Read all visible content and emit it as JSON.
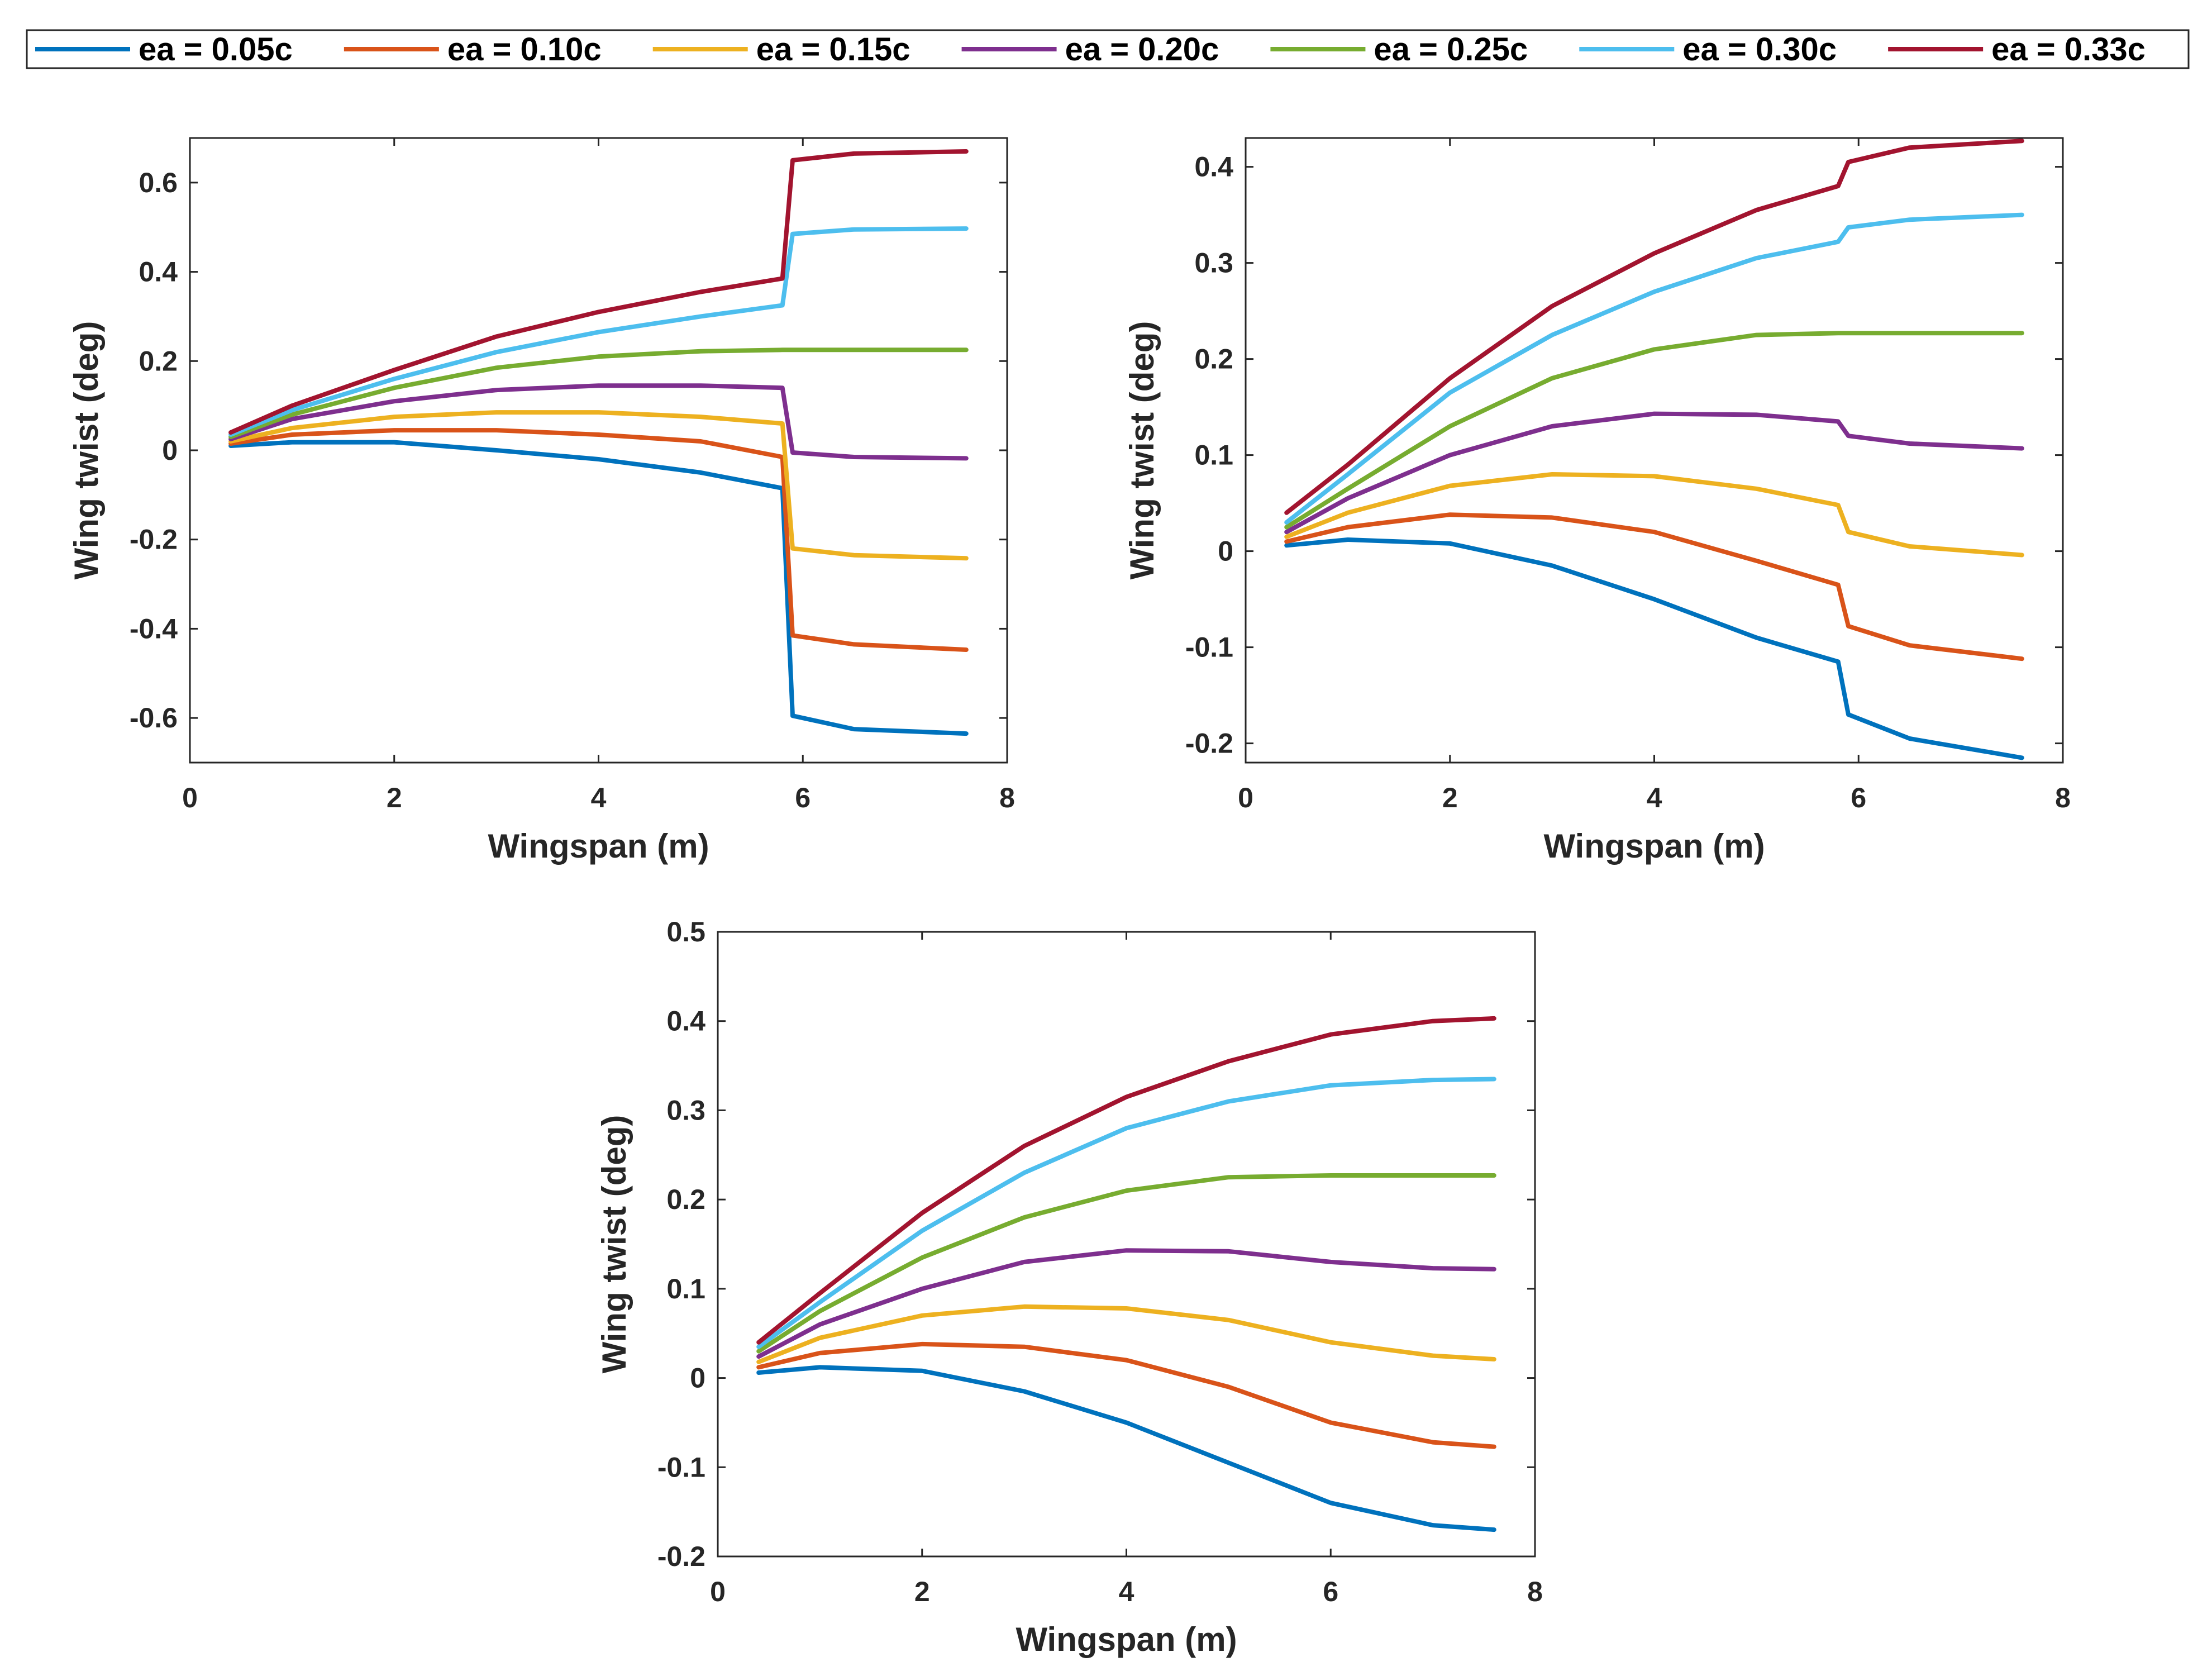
{
  "chart_data": [
    {
      "type": "line",
      "title": "",
      "xlabel": "Wingspan (m)",
      "ylabel": "Wing twist (deg)",
      "xlim": [
        0,
        8
      ],
      "ylim": [
        -0.7,
        0.7
      ],
      "xticks": [
        0,
        2,
        4,
        6,
        8
      ],
      "yticks": [
        -0.6,
        -0.4,
        -0.2,
        0,
        0.2,
        0.4,
        0.6
      ],
      "ytick_labels": [
        "-0.6",
        "-0.4",
        "-0.2",
        "0",
        "0.2",
        "0.4",
        "0.6"
      ],
      "grid": false,
      "series": [
        {
          "name": "ea = 0.05c",
          "x": [
            0.4,
            1,
            2,
            3,
            4,
            5,
            5.8,
            5.9,
            6.5,
            7.6
          ],
          "values": [
            0.01,
            0.018,
            0.018,
            0.0,
            -0.02,
            -0.05,
            -0.085,
            -0.595,
            -0.625,
            -0.635
          ]
        },
        {
          "name": "ea = 0.10c",
          "x": [
            0.4,
            1,
            2,
            3,
            4,
            5,
            5.8,
            5.9,
            6.5,
            7.6
          ],
          "values": [
            0.015,
            0.035,
            0.045,
            0.045,
            0.035,
            0.02,
            -0.015,
            -0.415,
            -0.435,
            -0.447
          ]
        },
        {
          "name": "ea = 0.15c",
          "x": [
            0.4,
            1,
            2,
            3,
            4,
            5,
            5.8,
            5.9,
            6.5,
            7.6
          ],
          "values": [
            0.02,
            0.05,
            0.075,
            0.085,
            0.085,
            0.075,
            0.06,
            -0.22,
            -0.235,
            -0.242
          ]
        },
        {
          "name": "ea = 0.20c",
          "x": [
            0.4,
            1,
            2,
            3,
            4,
            5,
            5.8,
            5.9,
            6.5,
            7.6
          ],
          "values": [
            0.025,
            0.07,
            0.11,
            0.135,
            0.145,
            0.145,
            0.14,
            -0.005,
            -0.015,
            -0.018
          ]
        },
        {
          "name": "ea = 0.25c",
          "x": [
            0.4,
            1,
            2,
            3,
            4,
            5,
            5.8,
            5.9,
            6.5,
            7.6
          ],
          "values": [
            0.03,
            0.08,
            0.14,
            0.185,
            0.21,
            0.222,
            0.225,
            0.225,
            0.225,
            0.225
          ]
        },
        {
          "name": "ea = 0.30c",
          "x": [
            0.4,
            1,
            2,
            3,
            4,
            5,
            5.8,
            5.9,
            6.5,
            7.6
          ],
          "values": [
            0.035,
            0.09,
            0.16,
            0.22,
            0.265,
            0.3,
            0.325,
            0.485,
            0.495,
            0.497
          ]
        },
        {
          "name": "ea = 0.33c",
          "x": [
            0.4,
            1,
            2,
            3,
            4,
            5,
            5.8,
            5.9,
            6.5,
            7.6
          ],
          "values": [
            0.04,
            0.1,
            0.18,
            0.255,
            0.31,
            0.355,
            0.385,
            0.65,
            0.665,
            0.67
          ]
        }
      ]
    },
    {
      "type": "line",
      "title": "",
      "xlabel": "Wingspan (m)",
      "ylabel": "Wing twist (deg)",
      "xlim": [
        0,
        8
      ],
      "ylim": [
        -0.22,
        0.43
      ],
      "xticks": [
        0,
        2,
        4,
        6,
        8
      ],
      "yticks": [
        -0.2,
        -0.1,
        0,
        0.1,
        0.2,
        0.3,
        0.4
      ],
      "ytick_labels": [
        "-0.2",
        "-0.1",
        "0",
        "0.1",
        "0.2",
        "0.3",
        "0.4"
      ],
      "grid": false,
      "series": [
        {
          "name": "ea = 0.05c",
          "x": [
            0.4,
            1,
            2,
            3,
            4,
            5,
            5.8,
            5.9,
            6.5,
            7.6
          ],
          "values": [
            0.006,
            0.012,
            0.008,
            -0.015,
            -0.05,
            -0.09,
            -0.115,
            -0.17,
            -0.195,
            -0.215
          ]
        },
        {
          "name": "ea = 0.10c",
          "x": [
            0.4,
            1,
            2,
            3,
            4,
            5,
            5.8,
            5.9,
            6.5,
            7.6
          ],
          "values": [
            0.01,
            0.025,
            0.038,
            0.035,
            0.02,
            -0.01,
            -0.035,
            -0.078,
            -0.098,
            -0.112
          ]
        },
        {
          "name": "ea = 0.15c",
          "x": [
            0.4,
            1,
            2,
            3,
            4,
            5,
            5.8,
            5.9,
            6.5,
            7.6
          ],
          "values": [
            0.015,
            0.04,
            0.068,
            0.08,
            0.078,
            0.065,
            0.048,
            0.02,
            0.005,
            -0.004
          ]
        },
        {
          "name": "ea = 0.20c",
          "x": [
            0.4,
            1,
            2,
            3,
            4,
            5,
            5.8,
            5.9,
            6.5,
            7.6
          ],
          "values": [
            0.02,
            0.055,
            0.1,
            0.13,
            0.143,
            0.142,
            0.135,
            0.12,
            0.112,
            0.107
          ]
        },
        {
          "name": "ea = 0.25c",
          "x": [
            0.4,
            1,
            2,
            3,
            4,
            5,
            5.8,
            5.9,
            6.5,
            7.6
          ],
          "values": [
            0.025,
            0.065,
            0.13,
            0.18,
            0.21,
            0.225,
            0.227,
            0.227,
            0.227,
            0.227
          ]
        },
        {
          "name": "ea = 0.30c",
          "x": [
            0.4,
            1,
            2,
            3,
            4,
            5,
            5.8,
            5.9,
            6.5,
            7.6
          ],
          "values": [
            0.03,
            0.08,
            0.165,
            0.225,
            0.27,
            0.305,
            0.322,
            0.337,
            0.345,
            0.35
          ]
        },
        {
          "name": "ea = 0.33c",
          "x": [
            0.4,
            1,
            2,
            3,
            4,
            5,
            5.8,
            5.9,
            6.5,
            7.6
          ],
          "values": [
            0.04,
            0.09,
            0.18,
            0.255,
            0.31,
            0.355,
            0.38,
            0.405,
            0.42,
            0.427
          ]
        }
      ]
    },
    {
      "type": "line",
      "title": "",
      "xlabel": "Wingspan (m)",
      "ylabel": "Wing twist (deg)",
      "xlim": [
        0,
        8
      ],
      "ylim": [
        -0.2,
        0.5
      ],
      "xticks": [
        0,
        2,
        4,
        6,
        8
      ],
      "yticks": [
        -0.2,
        -0.1,
        0,
        0.1,
        0.2,
        0.3,
        0.4,
        0.5
      ],
      "ytick_labels": [
        "-0.2",
        "-0.1",
        "0",
        "0.1",
        "0.2",
        "0.3",
        "0.4",
        "0.5"
      ],
      "grid": false,
      "series": [
        {
          "name": "ea = 0.05c",
          "x": [
            0.4,
            1,
            2,
            3,
            4,
            5,
            6,
            7,
            7.6
          ],
          "values": [
            0.006,
            0.012,
            0.008,
            -0.015,
            -0.05,
            -0.095,
            -0.14,
            -0.165,
            -0.17
          ]
        },
        {
          "name": "ea = 0.10c",
          "x": [
            0.4,
            1,
            2,
            3,
            4,
            5,
            6,
            7,
            7.6
          ],
          "values": [
            0.012,
            0.028,
            0.038,
            0.035,
            0.02,
            -0.01,
            -0.05,
            -0.072,
            -0.077
          ]
        },
        {
          "name": "ea = 0.15c",
          "x": [
            0.4,
            1,
            2,
            3,
            4,
            5,
            6,
            7,
            7.6
          ],
          "values": [
            0.018,
            0.045,
            0.07,
            0.08,
            0.078,
            0.065,
            0.04,
            0.025,
            0.021
          ]
        },
        {
          "name": "ea = 0.20c",
          "x": [
            0.4,
            1,
            2,
            3,
            4,
            5,
            6,
            7,
            7.6
          ],
          "values": [
            0.024,
            0.06,
            0.1,
            0.13,
            0.143,
            0.142,
            0.13,
            0.123,
            0.122
          ]
        },
        {
          "name": "ea = 0.25c",
          "x": [
            0.4,
            1,
            2,
            3,
            4,
            5,
            6,
            7,
            7.6
          ],
          "values": [
            0.03,
            0.075,
            0.135,
            0.18,
            0.21,
            0.225,
            0.227,
            0.227,
            0.227
          ]
        },
        {
          "name": "ea = 0.30c",
          "x": [
            0.4,
            1,
            2,
            3,
            4,
            5,
            6,
            7,
            7.6
          ],
          "values": [
            0.035,
            0.085,
            0.165,
            0.23,
            0.28,
            0.31,
            0.328,
            0.334,
            0.335
          ]
        },
        {
          "name": "ea = 0.33c",
          "x": [
            0.4,
            1,
            2,
            3,
            4,
            5,
            6,
            7,
            7.6
          ],
          "values": [
            0.04,
            0.095,
            0.185,
            0.26,
            0.315,
            0.355,
            0.385,
            0.4,
            0.403
          ]
        }
      ]
    }
  ],
  "legend": {
    "entries": [
      "ea = 0.05c",
      "ea = 0.10c",
      "ea = 0.15c",
      "ea = 0.20c",
      "ea = 0.25c",
      "ea = 0.30c",
      "ea = 0.33c"
    ],
    "colors": [
      "#0072BD",
      "#D95319",
      "#EDB120",
      "#7E2F8E",
      "#77AC30",
      "#4DBEEE",
      "#A2142F"
    ]
  },
  "colors": {
    "axis": "#262626",
    "background": "#ffffff"
  }
}
